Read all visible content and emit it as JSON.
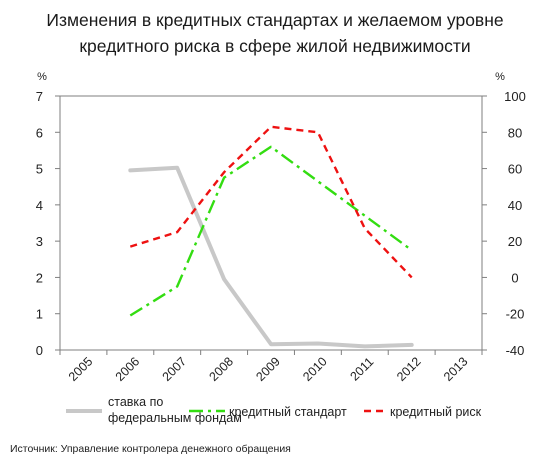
{
  "title_line1": "Изменения в кредитных стандартах и желаемом уровне",
  "title_line2": "кредитного риска в сфере жилой недвижимости",
  "source": "Источник: Управление контролера денежного обращения",
  "chart_data": {
    "type": "line",
    "left_axis": {
      "unit": "%",
      "ylim": [
        0,
        7
      ],
      "ticks": [
        "0",
        "1",
        "2",
        "3",
        "4",
        "5",
        "6",
        "7"
      ]
    },
    "right_axis": {
      "unit": "%",
      "ylim": [
        -40,
        100
      ],
      "ticks": [
        "-40",
        "-20",
        "0",
        "20",
        "40",
        "60",
        "80",
        "100"
      ]
    },
    "categories": [
      "2005",
      "2006",
      "2007",
      "2008",
      "2009",
      "2010",
      "2011",
      "2012",
      "2013"
    ],
    "grid": false,
    "legend_position": "bottom",
    "series": [
      {
        "name": "ставка по федеральным фондам",
        "name_lines": [
          "ставка по",
          "федеральным фондам"
        ],
        "axis": "left",
        "color": "#c8c8c8",
        "style": "solid",
        "x": [
          2006,
          2007,
          2008,
          2009,
          2010,
          2011,
          2012
        ],
        "y": [
          4.95,
          5.02,
          1.95,
          0.16,
          0.18,
          0.1,
          0.14
        ]
      },
      {
        "name": "кредитный стандарт",
        "axis": "right",
        "color": "#33dd11",
        "style": "dashdot",
        "x": [
          2006,
          2007,
          2008,
          2009,
          2010,
          2011,
          2012
        ],
        "y": [
          -21,
          -5,
          55,
          72,
          53,
          34,
          15
        ]
      },
      {
        "name": "кредитный риск",
        "axis": "right",
        "color": "#ee1111",
        "style": "dashed",
        "x": [
          2006,
          2007,
          2008,
          2009,
          2010,
          2011,
          2012
        ],
        "y": [
          17,
          25,
          58,
          83,
          80,
          27,
          0
        ]
      }
    ]
  }
}
